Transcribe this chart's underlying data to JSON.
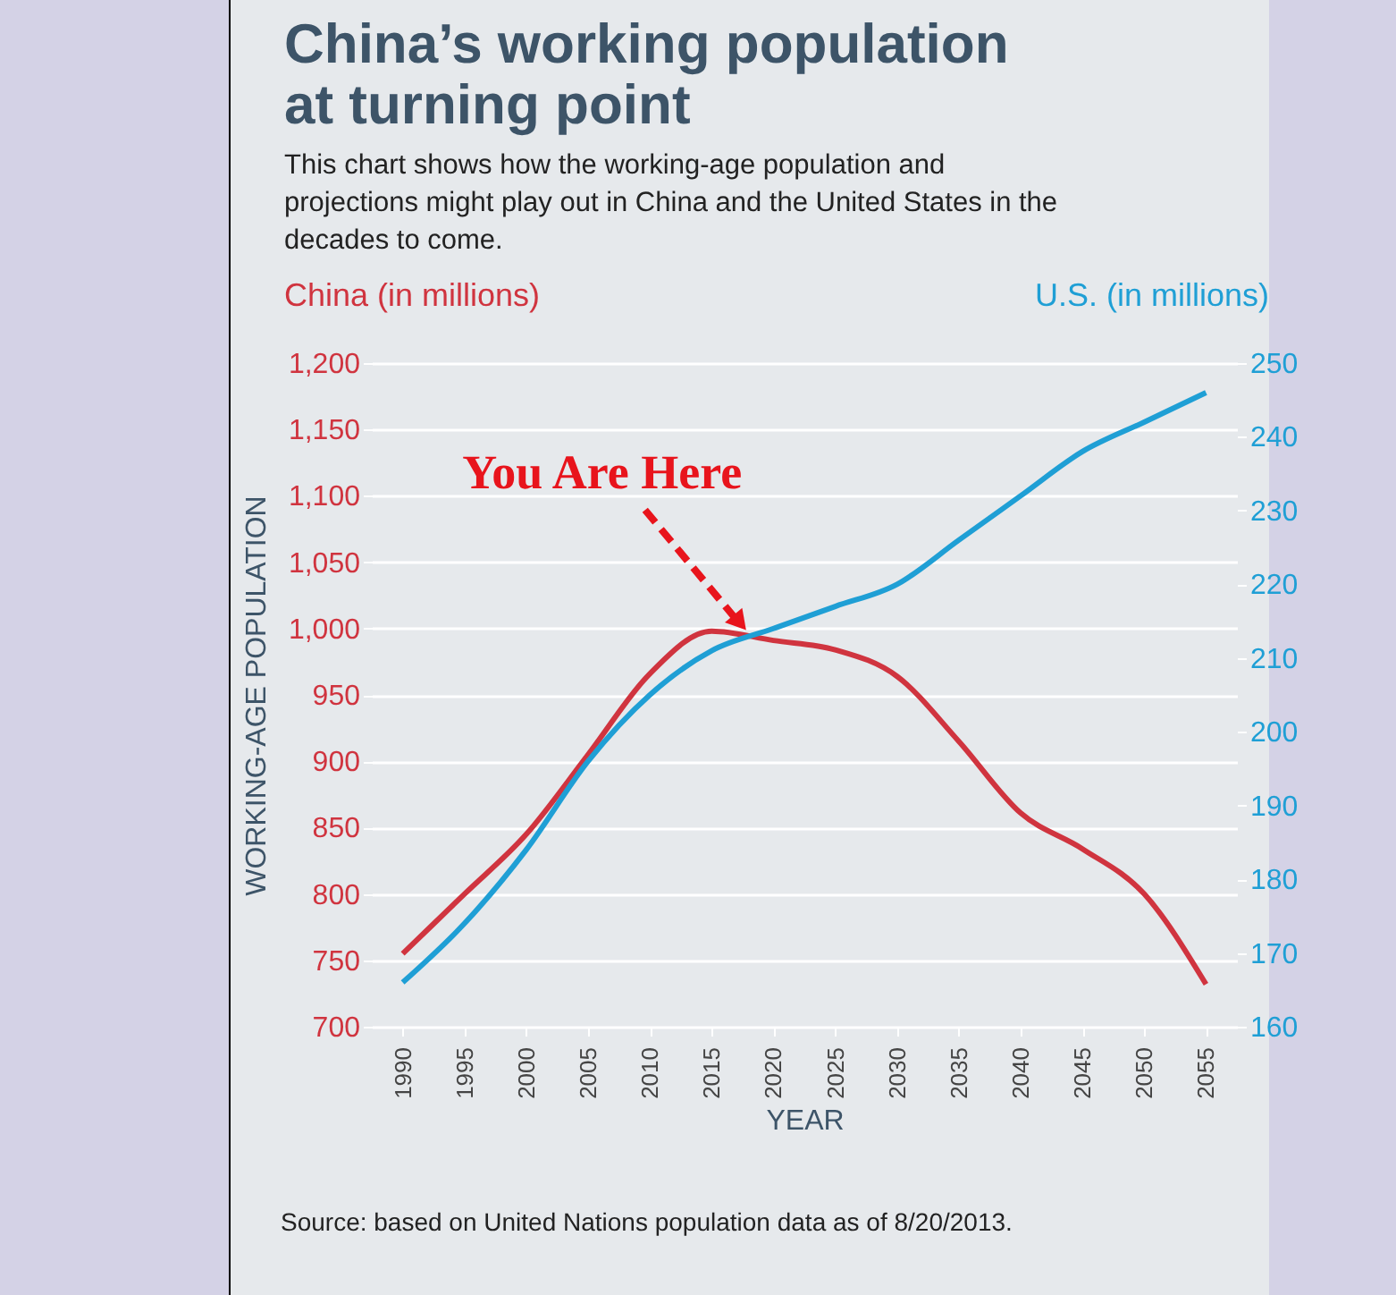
{
  "chart_data": {
    "type": "line",
    "title": "China’s working population at turning point",
    "subtitle": "This chart shows how the working-age population and projections might play out in China and the United States in the decades to come.",
    "xlabel": "YEAR",
    "ylabel": "WORKING-AGE POPULATION",
    "x": [
      1990,
      1995,
      2000,
      2005,
      2010,
      2015,
      2020,
      2025,
      2030,
      2035,
      2040,
      2045,
      2050,
      2055
    ],
    "series": [
      {
        "name": "China (in millions)",
        "color": "#d0343f",
        "values": [
          755,
          800,
          845,
          905,
          966,
          998,
          991,
          984,
          964,
          915,
          861,
          834,
          800,
          732
        ]
      },
      {
        "name": "U.S. (in millions)",
        "color": "#1f9fd5",
        "axis": "y2",
        "values": [
          166,
          174,
          184,
          196,
          205,
          211,
          214,
          217,
          220,
          226,
          232,
          238,
          242,
          246
        ]
      }
    ],
    "xlim": [
      1987.5,
      2057.5
    ],
    "xticks": [
      1990,
      1995,
      2000,
      2005,
      2010,
      2015,
      2020,
      2025,
      2030,
      2035,
      2040,
      2045,
      2050,
      2055
    ],
    "ylim": [
      700,
      1200
    ],
    "yticks": [
      700,
      750,
      800,
      850,
      900,
      950,
      {
        "value": 1000,
        "label": "1,000"
      },
      {
        "value": 1050,
        "label": "1,050"
      },
      {
        "value": 1100,
        "label": "1,100"
      },
      {
        "value": 1150,
        "label": "1,150"
      },
      {
        "value": 1200,
        "label": "1,200"
      }
    ],
    "y2lim": [
      160,
      250
    ],
    "y2ticks": [
      160,
      170,
      180,
      190,
      200,
      210,
      220,
      230,
      240,
      250
    ],
    "annotations": [
      {
        "text": "You Are Here",
        "x": 2018,
        "y": 995
      },
      "Source: based on United Nations population data as of 8/20/2013."
    ],
    "grid": "y",
    "marker": "none",
    "line_style": "solid"
  }
}
